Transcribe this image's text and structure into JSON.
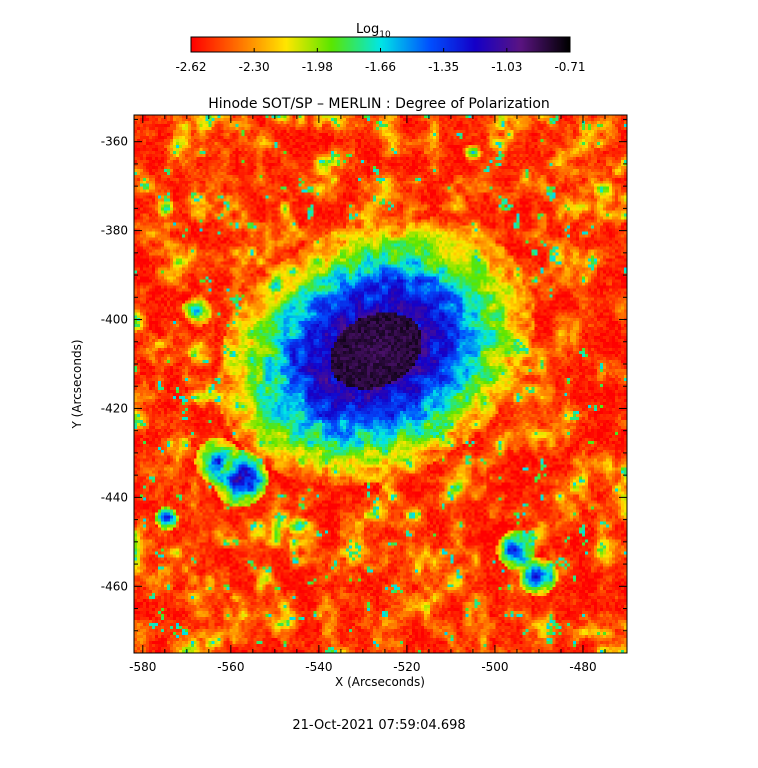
{
  "chart_data": {
    "type": "heatmap",
    "title": "Hinode SOT/SP – MERLIN : Degree of Polarization",
    "xlabel": "X (Arcseconds)",
    "ylabel": "Y (Arcseconds)",
    "xlim": [
      -582,
      -470
    ],
    "ylim": [
      -475,
      -354
    ],
    "x_ticks": [
      -580,
      -560,
      -540,
      -520,
      -500,
      -480
    ],
    "y_ticks": [
      -360,
      -380,
      -400,
      -420,
      -440,
      -460
    ],
    "colorbar": {
      "label_base": "Log",
      "label_sub": "10",
      "range": [
        -2.62,
        -0.71
      ],
      "ticks": [
        "-2.62",
        "-2.30",
        "-1.98",
        "-1.66",
        "-1.35",
        "-1.03",
        "-0.71"
      ]
    },
    "features": {
      "umbra_center": [
        -527,
        -407
      ],
      "umbra_radii": [
        11,
        8
      ],
      "penumbra_radii": [
        20,
        15
      ],
      "blobs": [
        {
          "x": -558,
          "y": -436,
          "r": 3.5,
          "v": -1.05
        },
        {
          "x": -563,
          "y": -432,
          "r": 3,
          "v": -1.25
        },
        {
          "x": -568,
          "y": -398,
          "r": 2,
          "v": -1.4
        },
        {
          "x": -495,
          "y": -452,
          "r": 2.5,
          "v": -1.1
        },
        {
          "x": -490,
          "y": -458,
          "r": 2.5,
          "v": -1.2
        },
        {
          "x": -550,
          "y": -392,
          "r": 1.8,
          "v": -1.5
        },
        {
          "x": -545,
          "y": -447,
          "r": 2,
          "v": -1.6
        },
        {
          "x": -575,
          "y": -445,
          "r": 1.5,
          "v": -1.2
        },
        {
          "x": -575,
          "y": -375,
          "r": 1.5,
          "v": -1.6
        },
        {
          "x": -505,
          "y": -362,
          "r": 1.5,
          "v": -1.7
        }
      ]
    }
  },
  "timestamp": "21-Oct-2021 07:59:04.698"
}
